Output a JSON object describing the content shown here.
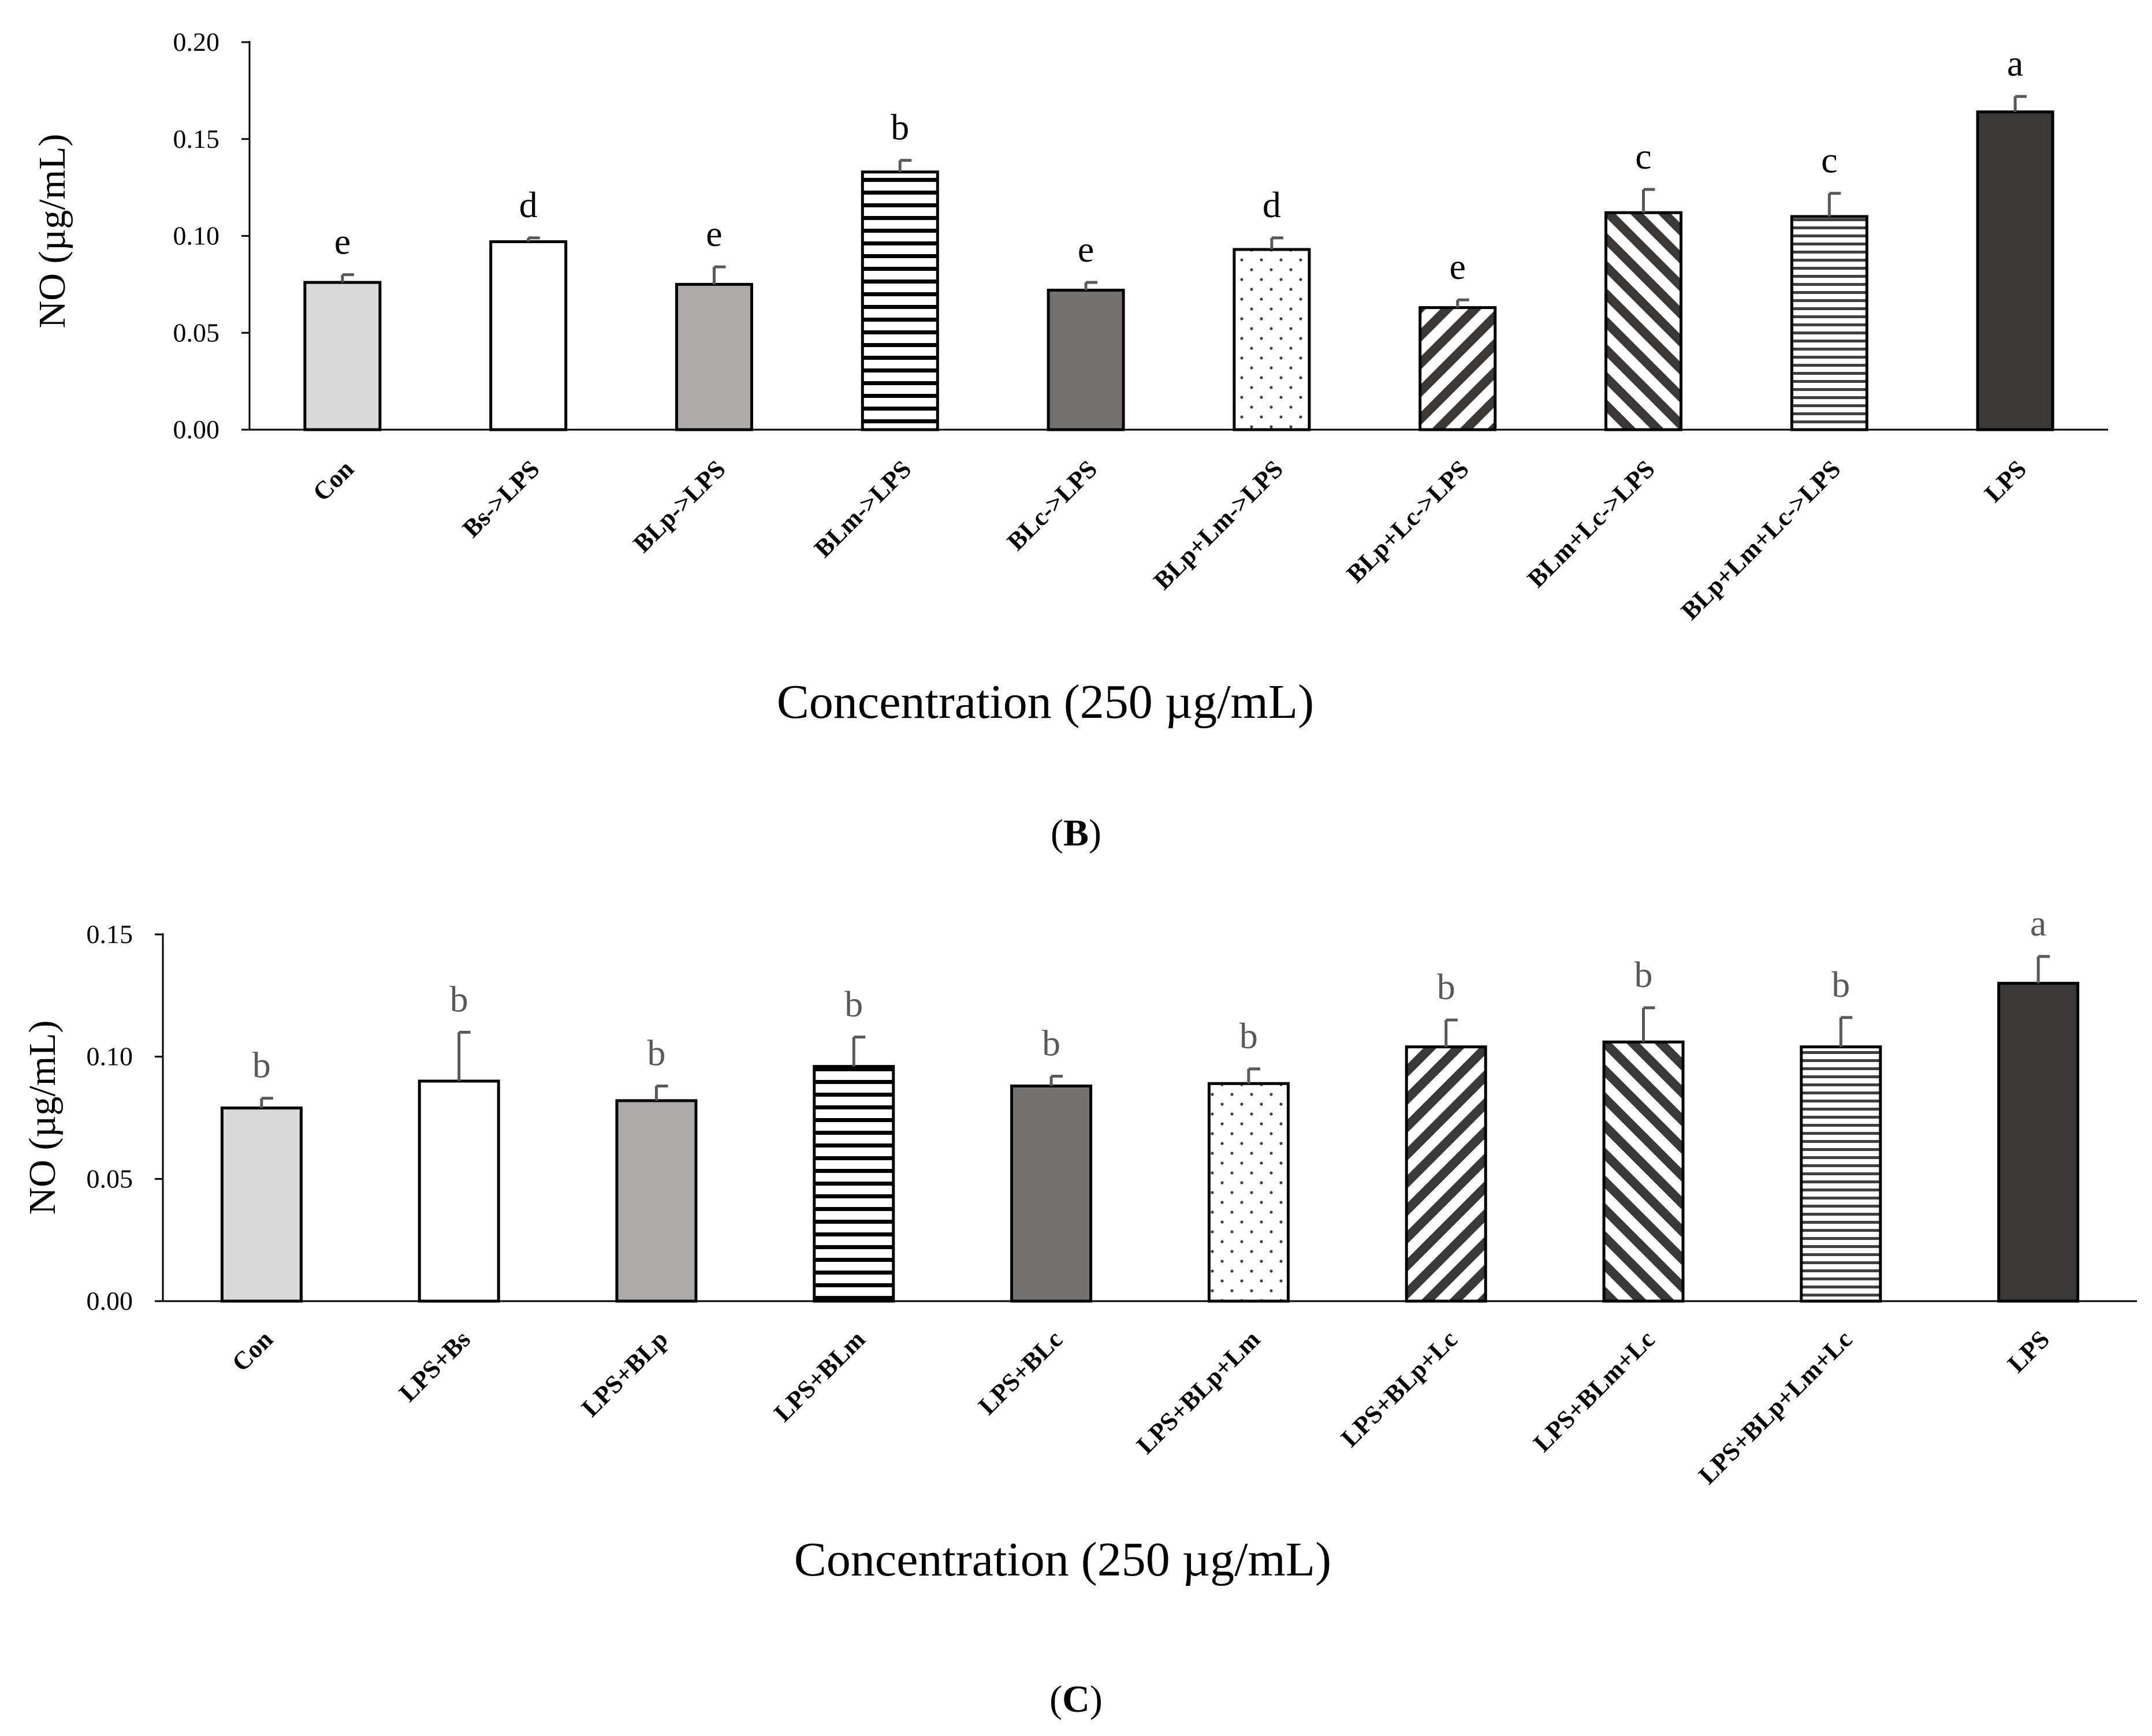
{
  "charts": [
    {
      "panel_label_open": "(",
      "panel_label_letter": "B",
      "panel_label_close": ")",
      "ylabel": "NO (µg/mL)",
      "xlabel": "Concentration (250 µg/mL)",
      "ytick_labels": [
        "0.00",
        "0.05",
        "0.10",
        "0.15",
        "0.20"
      ]
    },
    {
      "panel_label_open": "(",
      "panel_label_letter": "C",
      "panel_label_close": ")",
      "ylabel": "NO (µg/mL)",
      "xlabel": "Concentration (250 µg/mL)",
      "ytick_labels": [
        "0.00",
        "0.05",
        "0.10",
        "0.15"
      ]
    }
  ],
  "chart_data": [
    {
      "type": "bar",
      "title": "(B)",
      "xlabel": "Concentration (250 µg/mL)",
      "ylabel": "NO (µg/mL)",
      "ylim": [
        0,
        0.2
      ],
      "yticks": [
        0,
        0.05,
        0.1,
        0.15,
        0.2
      ],
      "grid": false,
      "categories": [
        "Con",
        "Bs->LPS",
        "BLp->LPS",
        "BLm->LPS",
        "BLc->LPS",
        "BLp+Lm->LPS",
        "BLp+Lc->LPS",
        "BLm+Lc->LPS",
        "BLp+Lm+Lc->LPS",
        "LPS"
      ],
      "values": [
        0.076,
        0.097,
        0.075,
        0.133,
        0.072,
        0.093,
        0.063,
        0.112,
        0.11,
        0.164
      ],
      "errors": [
        0.004,
        0.002,
        0.009,
        0.006,
        0.004,
        0.006,
        0.004,
        0.012,
        0.012,
        0.008
      ],
      "significance_letters": [
        "e",
        "d",
        "e",
        "b",
        "e",
        "d",
        "e",
        "c",
        "c",
        "a"
      ],
      "letter_color": "#000000",
      "patterns": [
        "solid-light",
        "white",
        "solid-mid",
        "hstripe-thick",
        "solid-dark",
        "dots",
        "diag-down",
        "diag-up",
        "hstripe-thin",
        "solid-darkest"
      ]
    },
    {
      "type": "bar",
      "title": "(C)",
      "xlabel": "Concentration (250 µg/mL)",
      "ylabel": "NO (µg/mL)",
      "ylim": [
        0,
        0.15
      ],
      "yticks": [
        0,
        0.05,
        0.1,
        0.15
      ],
      "grid": false,
      "categories": [
        "Con",
        "LPS+Bs",
        "LPS+BLp",
        "LPS+BLm",
        "LPS+BLc",
        "LPS+BLp+Lm",
        "LPS+BLp+Lc",
        "LPS+BLm+Lc",
        "LPS+BLp+Lm+Lc",
        "LPS"
      ],
      "values": [
        0.079,
        0.09,
        0.082,
        0.096,
        0.088,
        0.089,
        0.104,
        0.106,
        0.104,
        0.13
      ],
      "errors": [
        0.004,
        0.02,
        0.006,
        0.012,
        0.004,
        0.006,
        0.011,
        0.014,
        0.012,
        0.011
      ],
      "significance_letters": [
        "b",
        "b",
        "b",
        "b",
        "b",
        "b",
        "b",
        "b",
        "b",
        "a"
      ],
      "letter_color": "#595959",
      "patterns": [
        "solid-light",
        "white",
        "solid-mid",
        "hstripe-thick",
        "solid-dark",
        "dots",
        "diag-down",
        "diag-up",
        "hstripe-thin",
        "solid-darkest"
      ]
    }
  ],
  "colors": {
    "solid-light": "#d9d9d9",
    "solid-mid": "#aeaaaa",
    "solid-dark": "#767171",
    "solid-darkest": "#3b3838",
    "pattern-ink": "#000000",
    "pattern-ink-gray": "#404040",
    "error-bar": "#595959",
    "axis": "#000000"
  }
}
